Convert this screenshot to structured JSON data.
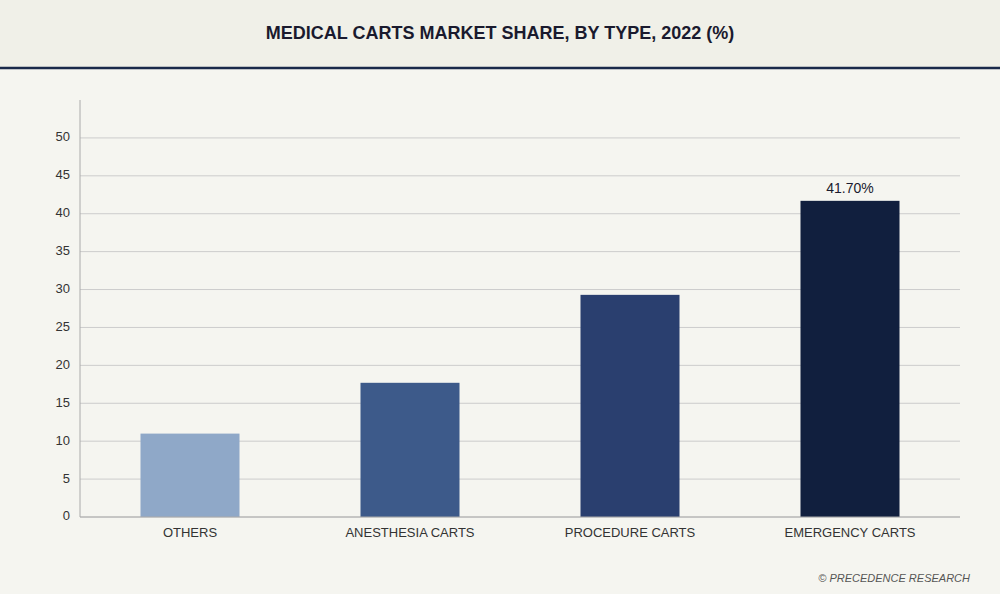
{
  "chart_data": {
    "type": "bar",
    "title": "MEDICAL CARTS MARKET SHARE, BY TYPE, 2022 (%)",
    "categories": [
      "OTHERS",
      "ANESTHESIA CARTS",
      "PROCEDURE CARTS",
      "EMERGENCY CARTS"
    ],
    "values": [
      11.0,
      17.7,
      29.3,
      41.7
    ],
    "colors": [
      "#8fa8c8",
      "#3d5a8a",
      "#2a3f6f",
      "#111f3e"
    ],
    "ylim": [
      0,
      55
    ],
    "yticks": [
      0,
      5,
      10,
      15,
      20,
      25,
      30,
      35,
      40,
      45,
      50
    ],
    "grid": true,
    "annotations": [
      {
        "text": "41.70%",
        "category": "EMERGENCY CARTS"
      },
      {
        "text": "© PRECEDENCE RESEARCH"
      }
    ]
  }
}
